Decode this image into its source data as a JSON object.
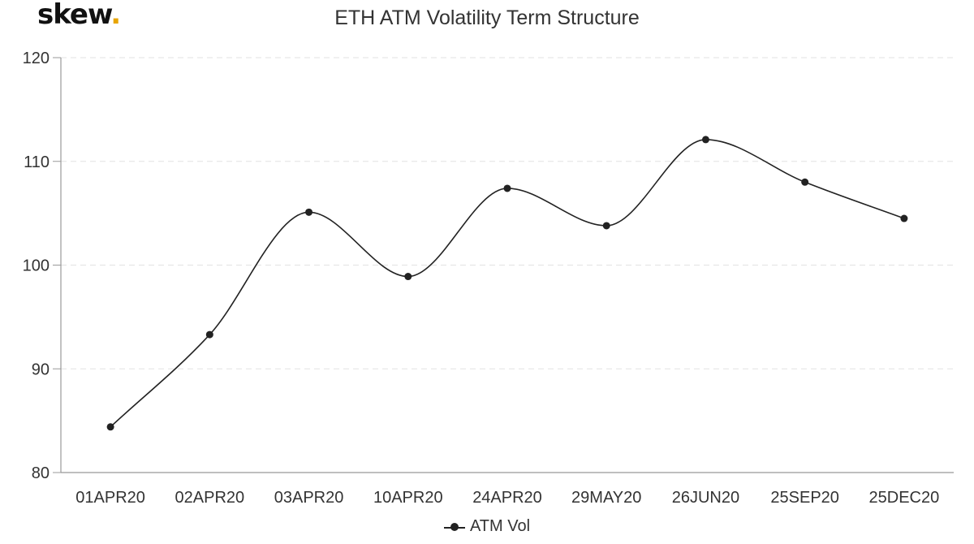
{
  "brand": {
    "name": "skew",
    "dot": "."
  },
  "chart_data": {
    "type": "line",
    "title": "ETH ATM Volatility Term Structure",
    "categories": [
      "01APR20",
      "02APR20",
      "03APR20",
      "10APR20",
      "24APR20",
      "29MAY20",
      "26JUN20",
      "25SEP20",
      "25DEC20"
    ],
    "series": [
      {
        "name": "ATM Vol",
        "values": [
          84.4,
          93.3,
          105.1,
          98.9,
          107.4,
          103.8,
          112.1,
          108.0,
          104.5
        ],
        "color": "#222222"
      }
    ],
    "ylim": [
      80,
      120
    ],
    "yticks": [
      80,
      90,
      100,
      110,
      120
    ],
    "xlabel": "",
    "ylabel": "",
    "grid": true,
    "legend": "bottom-center"
  }
}
